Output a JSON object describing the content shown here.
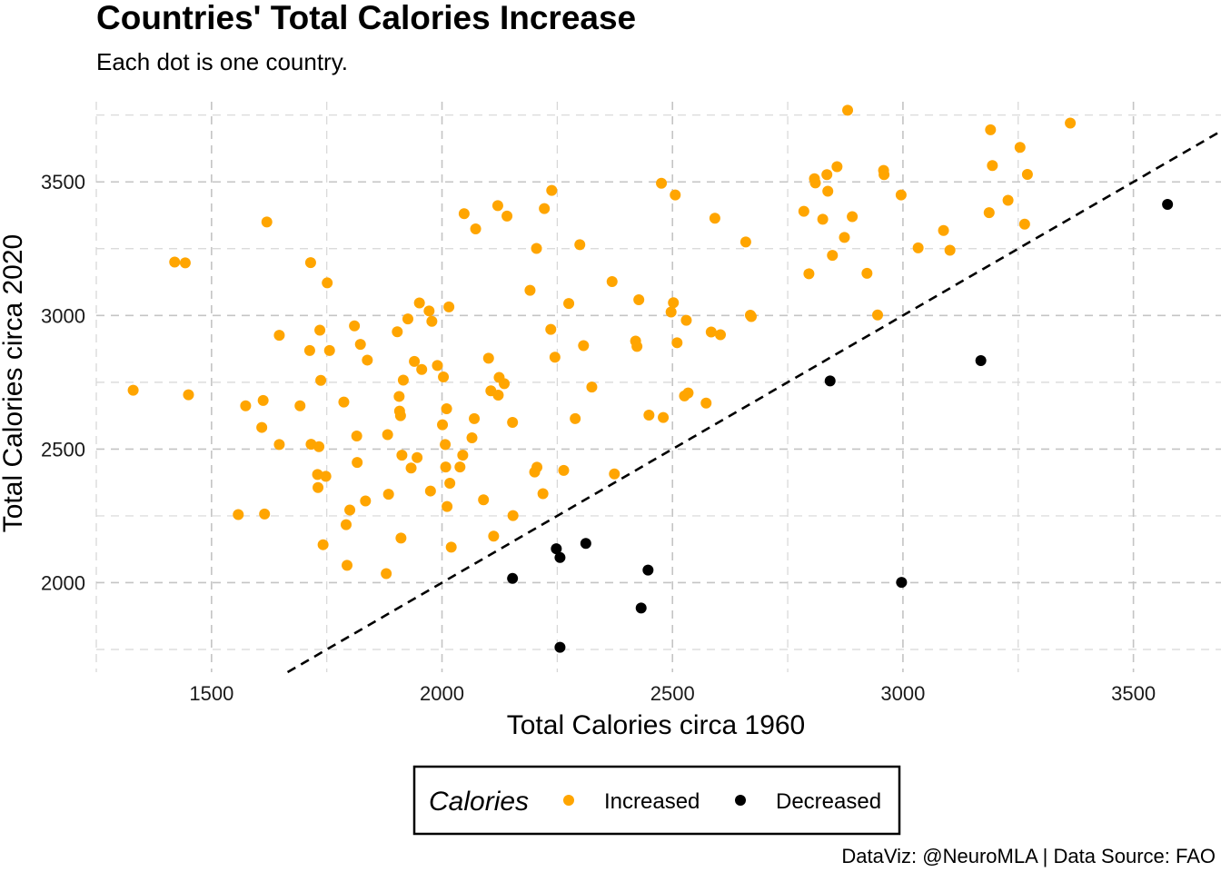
{
  "chart_data": {
    "type": "scatter",
    "title": "Countries' Total Calories Increase",
    "subtitle": "Each dot is one country.",
    "xlabel": "Total Calories circa 1960",
    "ylabel": "Total Calories circa 2020",
    "caption": "DataViz: @NeuroMLA | Data Source: FAO",
    "xlim": [
      1250,
      3690
    ],
    "ylim": [
      1665,
      3800
    ],
    "x_ticks": [
      "1500",
      "2000",
      "2500",
      "3000",
      "3500"
    ],
    "y_ticks": [
      "2000",
      "2500",
      "3000",
      "3500"
    ],
    "grid": true,
    "reference_line": "y = x",
    "legend": {
      "title": "Calories",
      "position": "bottom",
      "entries": [
        "Increased",
        "Decreased"
      ]
    },
    "series": [
      {
        "name": "Increased",
        "color": "#FFA500",
        "points": [
          [
            1330,
            2720
          ],
          [
            1420,
            3200
          ],
          [
            1443,
            3197
          ],
          [
            1450,
            2703
          ],
          [
            1558,
            2255
          ],
          [
            1574,
            2662
          ],
          [
            1609,
            2581
          ],
          [
            1612,
            2682
          ],
          [
            1615,
            2257
          ],
          [
            1620,
            3350
          ],
          [
            1647,
            2926
          ],
          [
            1647,
            2517
          ],
          [
            1692,
            2662
          ],
          [
            1713,
            2869
          ],
          [
            1715,
            3198
          ],
          [
            1716,
            2518
          ],
          [
            1730,
            2405
          ],
          [
            1731,
            2356
          ],
          [
            1733,
            2509
          ],
          [
            1735,
            2945
          ],
          [
            1737,
            2757
          ],
          [
            1742,
            2142
          ],
          [
            1748,
            2398
          ],
          [
            1751,
            3122
          ],
          [
            1756,
            2869
          ],
          [
            1787,
            2676
          ],
          [
            1792,
            2217
          ],
          [
            1794,
            2065
          ],
          [
            1800,
            2272
          ],
          [
            1810,
            2961
          ],
          [
            1815,
            2549
          ],
          [
            1816,
            2450
          ],
          [
            1823,
            2892
          ],
          [
            1834,
            2306
          ],
          [
            1838,
            2833
          ],
          [
            1879,
            2034
          ],
          [
            1882,
            2554
          ],
          [
            1884,
            2331
          ],
          [
            1903,
            2939
          ],
          [
            1907,
            2697
          ],
          [
            1908,
            2642
          ],
          [
            1910,
            2625
          ],
          [
            1911,
            2167
          ],
          [
            1913,
            2477
          ],
          [
            1916,
            2758
          ],
          [
            1926,
            2987
          ],
          [
            1933,
            2429
          ],
          [
            1940,
            2828
          ],
          [
            1946,
            2468
          ],
          [
            1951,
            3047
          ],
          [
            1956,
            2798
          ],
          [
            1972,
            3017
          ],
          [
            1975,
            2343
          ],
          [
            1978,
            2978
          ],
          [
            1990,
            2813
          ],
          [
            2001,
            2591
          ],
          [
            2003,
            2770
          ],
          [
            2007,
            2517
          ],
          [
            2008,
            2433
          ],
          [
            2010,
            2651
          ],
          [
            2011,
            2285
          ],
          [
            2015,
            3032
          ],
          [
            2017,
            2372
          ],
          [
            2020,
            2133
          ],
          [
            2039,
            2433
          ],
          [
            2045,
            2477
          ],
          [
            2048,
            3381
          ],
          [
            2065,
            2542
          ],
          [
            2070,
            2614
          ],
          [
            2073,
            3324
          ],
          [
            2090,
            2310
          ],
          [
            2101,
            2840
          ],
          [
            2106,
            2718
          ],
          [
            2112,
            2174
          ],
          [
            2121,
            3411
          ],
          [
            2122,
            2702
          ],
          [
            2124,
            2768
          ],
          [
            2135,
            2745
          ],
          [
            2141,
            3372
          ],
          [
            2153,
            2600
          ],
          [
            2154,
            2251
          ],
          [
            2191,
            3094
          ],
          [
            2201,
            2414
          ],
          [
            2205,
            3251
          ],
          [
            2206,
            2432
          ],
          [
            2219,
            2333
          ],
          [
            2222,
            3400
          ],
          [
            2236,
            2948
          ],
          [
            2238,
            3468
          ],
          [
            2245,
            2844
          ],
          [
            2264,
            2420
          ],
          [
            2275,
            3045
          ],
          [
            2289,
            2614
          ],
          [
            2299,
            3265
          ],
          [
            2307,
            2887
          ],
          [
            2325,
            2732
          ],
          [
            2369,
            3127
          ],
          [
            2374,
            2407
          ],
          [
            2420,
            2904
          ],
          [
            2423,
            2884
          ],
          [
            2427,
            3059
          ],
          [
            2449,
            2627
          ],
          [
            2476,
            3495
          ],
          [
            2480,
            2618
          ],
          [
            2497,
            3013
          ],
          [
            2502,
            3048
          ],
          [
            2506,
            3451
          ],
          [
            2510,
            2898
          ],
          [
            2526,
            2699
          ],
          [
            2530,
            2982
          ],
          [
            2534,
            2710
          ],
          [
            2573,
            2672
          ],
          [
            2584,
            2938
          ],
          [
            2592,
            3364
          ],
          [
            2604,
            2928
          ],
          [
            2659,
            3275
          ],
          [
            2669,
            3001
          ],
          [
            2671,
            2996
          ],
          [
            2785,
            3390
          ],
          [
            2796,
            3156
          ],
          [
            2808,
            3512
          ],
          [
            2810,
            3496
          ],
          [
            2826,
            3360
          ],
          [
            2835,
            3527
          ],
          [
            2837,
            3465
          ],
          [
            2847,
            3225
          ],
          [
            2857,
            3557
          ],
          [
            2873,
            3292
          ],
          [
            2880,
            3768
          ],
          [
            2890,
            3370
          ],
          [
            2922,
            3158
          ],
          [
            2945,
            3002
          ],
          [
            2958,
            3543
          ],
          [
            2959,
            3527
          ],
          [
            2996,
            3451
          ],
          [
            3033,
            3253
          ],
          [
            3088,
            3318
          ],
          [
            3102,
            3244
          ],
          [
            3187,
            3385
          ],
          [
            3190,
            3695
          ],
          [
            3194,
            3561
          ],
          [
            3228,
            3431
          ],
          [
            3254,
            3629
          ],
          [
            3264,
            3342
          ],
          [
            3270,
            3528
          ],
          [
            3363,
            3720
          ]
        ]
      },
      {
        "name": "Decreased",
        "color": "#000000",
        "points": [
          [
            2153,
            2016
          ],
          [
            2248,
            2127
          ],
          [
            2256,
            2094
          ],
          [
            2256,
            1758
          ],
          [
            2312,
            2147
          ],
          [
            2432,
            1905
          ],
          [
            2447,
            2047
          ],
          [
            2842,
            2755
          ],
          [
            2997,
            2001
          ],
          [
            3169,
            2831
          ],
          [
            3574,
            3416
          ]
        ]
      }
    ]
  }
}
